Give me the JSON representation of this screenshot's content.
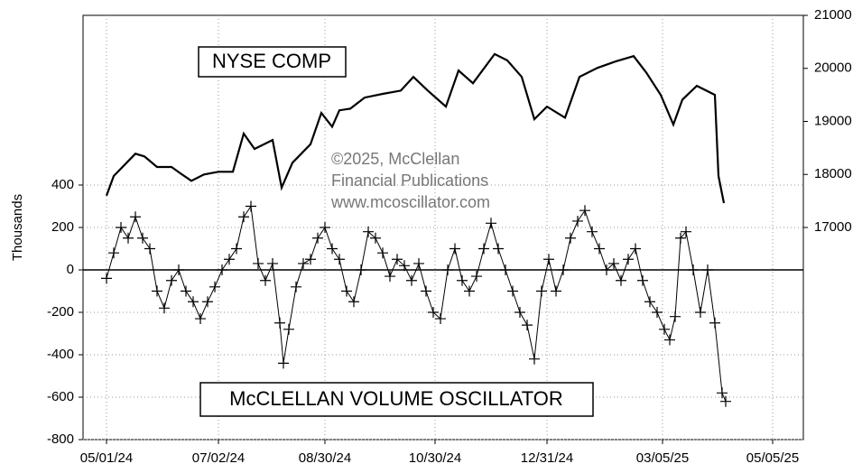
{
  "chart_data": {
    "type": "line",
    "ylabel": "Thousands",
    "xlim": [
      "04/18/24",
      "05/22/25"
    ],
    "xticks": [
      "05/01/24",
      "07/02/24",
      "08/30/24",
      "10/30/24",
      "12/31/24",
      "03/05/25",
      "05/05/25"
    ],
    "ylim": [
      -800,
      1200
    ],
    "yticks": [
      -800,
      -600,
      -400,
      -200,
      0,
      200,
      400
    ],
    "y2lim": [
      13000,
      21000
    ],
    "y2ticks": [
      17000,
      18000,
      19000,
      20000,
      21000
    ],
    "grid": true,
    "zero_line": true,
    "annotations": [
      "©2025, McClellan",
      "Financial Publications",
      "www.mcoscillator.com"
    ],
    "series": [
      {
        "name": "NYSE COMP",
        "color": "#000000",
        "axis": "y2",
        "marker": "none",
        "x": [
          "05/01/24",
          "05/05/24",
          "05/17/24",
          "05/22/24",
          "05/29/24",
          "06/06/24",
          "06/11/24",
          "06/17/24",
          "06/24/24",
          "07/02/24",
          "07/10/24",
          "07/16/24",
          "07/22/24",
          "08/01/24",
          "08/06/24",
          "08/12/24",
          "08/22/24",
          "08/28/24",
          "09/03/24",
          "09/07/24",
          "09/13/24",
          "09/21/24",
          "10/01/24",
          "10/11/24",
          "10/18/24",
          "10/26/24",
          "11/05/24",
          "11/12/24",
          "11/20/24",
          "12/02/24",
          "12/09/24",
          "12/17/24",
          "12/24/24",
          "12/31/24",
          "01/10/25",
          "01/18/25",
          "01/28/25",
          "02/07/25",
          "02/17/25",
          "02/24/25",
          "03/04/25",
          "03/11/25",
          "03/16/25",
          "03/24/25",
          "04/03/25",
          "04/05/25",
          "04/08/25"
        ],
        "values": [
          17600,
          17970,
          18390,
          18340,
          18140,
          18140,
          18020,
          17880,
          18000,
          18050,
          18050,
          18770,
          18480,
          18650,
          17750,
          18220,
          18570,
          19160,
          18900,
          19210,
          19240,
          19450,
          19520,
          19580,
          19840,
          19580,
          19280,
          19960,
          19720,
          20270,
          20150,
          19840,
          19040,
          19280,
          19070,
          19840,
          20010,
          20130,
          20230,
          19920,
          19500,
          18940,
          19410,
          19670,
          19500,
          17970,
          17460
        ]
      },
      {
        "name": "McCLELLAN VOLUME OSCILLATOR",
        "color": "#000000",
        "axis": "y",
        "marker": "plus",
        "x": [
          "05/01/24",
          "05/05/24",
          "05/09/24",
          "05/13/24",
          "05/17/24",
          "05/21/24",
          "05/25/24",
          "05/29/24",
          "06/02/24",
          "06/06/24",
          "06/10/24",
          "06/14/24",
          "06/18/24",
          "06/22/24",
          "06/26/24",
          "06/30/24",
          "07/04/24",
          "07/08/24",
          "07/12/24",
          "07/16/24",
          "07/20/24",
          "07/24/24",
          "07/28/24",
          "08/01/24",
          "08/05/24",
          "08/07/24",
          "08/10/24",
          "08/14/24",
          "08/18/24",
          "08/22/24",
          "08/26/24",
          "08/30/24",
          "09/03/24",
          "09/07/24",
          "09/11/24",
          "09/15/24",
          "09/19/24",
          "09/23/24",
          "09/27/24",
          "10/01/24",
          "10/05/24",
          "10/09/24",
          "10/13/24",
          "10/17/24",
          "10/21/24",
          "10/25/24",
          "10/29/24",
          "11/02/24",
          "11/06/24",
          "11/10/24",
          "11/14/24",
          "11/18/24",
          "11/22/24",
          "11/26/24",
          "11/30/24",
          "12/04/24",
          "12/08/24",
          "12/12/24",
          "12/16/24",
          "12/20/24",
          "12/24/24",
          "12/28/24",
          "01/01/25",
          "01/05/25",
          "01/09/25",
          "01/13/25",
          "01/17/25",
          "01/21/25",
          "01/25/25",
          "01/29/25",
          "02/02/25",
          "02/06/25",
          "02/10/25",
          "02/14/25",
          "02/18/25",
          "02/22/25",
          "02/26/25",
          "03/02/25",
          "03/06/25",
          "03/09/25",
          "03/12/25",
          "03/15/25",
          "03/18/25",
          "03/22/25",
          "03/26/25",
          "03/30/25",
          "04/03/25",
          "04/07/25",
          "04/09/25"
        ],
        "values": [
          -40,
          80,
          200,
          150,
          250,
          150,
          100,
          -100,
          -180,
          -50,
          0,
          -100,
          -150,
          -230,
          -150,
          -80,
          0,
          50,
          100,
          250,
          300,
          30,
          -50,
          30,
          -250,
          -440,
          -280,
          -80,
          30,
          50,
          150,
          200,
          100,
          50,
          -100,
          -150,
          0,
          180,
          150,
          80,
          -30,
          50,
          20,
          -50,
          30,
          -100,
          -200,
          -230,
          0,
          100,
          -50,
          -100,
          -30,
          100,
          220,
          100,
          0,
          -100,
          -200,
          -260,
          -420,
          -100,
          50,
          -100,
          0,
          150,
          230,
          280,
          180,
          100,
          0,
          30,
          -50,
          50,
          100,
          -50,
          -150,
          -200,
          -280,
          -330,
          -220,
          150,
          180,
          0,
          -200,
          0,
          -250,
          -580,
          -620
        ]
      }
    ]
  }
}
